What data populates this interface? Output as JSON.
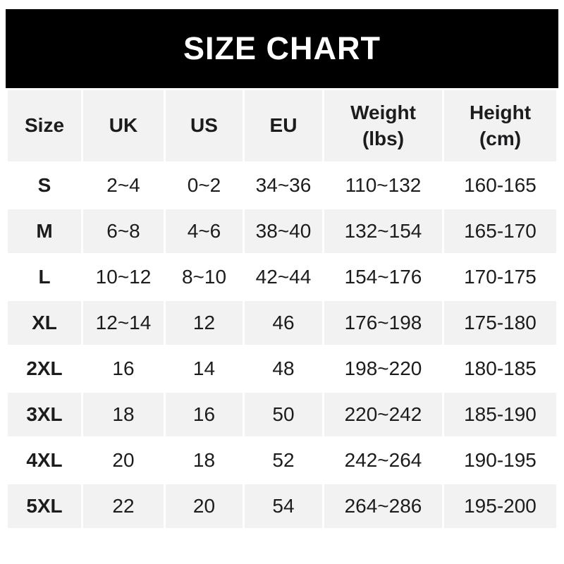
{
  "banner": {
    "title": "SIZE CHART",
    "bg_color": "#000000",
    "text_color": "#ffffff"
  },
  "chart_data": {
    "type": "table",
    "title": "SIZE CHART",
    "columns": [
      {
        "key": "size",
        "label": "Size"
      },
      {
        "key": "uk",
        "label": "UK"
      },
      {
        "key": "us",
        "label": "US"
      },
      {
        "key": "eu",
        "label": "EU"
      },
      {
        "key": "weight",
        "label": "Weight\n(lbs)"
      },
      {
        "key": "height",
        "label": "Height\n(cm)"
      }
    ],
    "rows": [
      {
        "size": "S",
        "uk": "2~4",
        "us": "0~2",
        "eu": "34~36",
        "weight": "110~132",
        "height": "160-165"
      },
      {
        "size": "M",
        "uk": "6~8",
        "us": "4~6",
        "eu": "38~40",
        "weight": "132~154",
        "height": "165-170"
      },
      {
        "size": "L",
        "uk": "10~12",
        "us": "8~10",
        "eu": "42~44",
        "weight": "154~176",
        "height": "170-175"
      },
      {
        "size": "XL",
        "uk": "12~14",
        "us": "12",
        "eu": "46",
        "weight": "176~198",
        "height": "175-180"
      },
      {
        "size": "2XL",
        "uk": "16",
        "us": "14",
        "eu": "48",
        "weight": "198~220",
        "height": "180-185"
      },
      {
        "size": "3XL",
        "uk": "18",
        "us": "16",
        "eu": "50",
        "weight": "220~242",
        "height": "185-190"
      },
      {
        "size": "4XL",
        "uk": "20",
        "us": "18",
        "eu": "52",
        "weight": "242~264",
        "height": "190-195"
      },
      {
        "size": "5XL",
        "uk": "22",
        "us": "20",
        "eu": "54",
        "weight": "264~286",
        "height": "195-200"
      }
    ],
    "style": {
      "header_bg_color": "#f2f2f2",
      "alt_row_color": "#f2f2f2",
      "row_color": "#ffffff",
      "text_color": "#1c1c1e"
    },
    "layout": {
      "alternating_rows": true,
      "first_alt_row_index": 1
    }
  }
}
